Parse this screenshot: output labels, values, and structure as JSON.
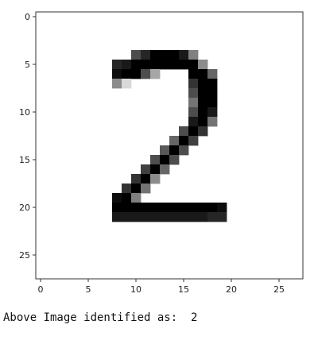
{
  "output": {
    "text": "Above Image identified as:  2"
  },
  "chart_data": {
    "type": "heatmap",
    "title": "",
    "xlabel": "",
    "ylabel": "",
    "colormap": "gray_r",
    "grid": false,
    "xlim": [
      -0.5,
      27.5
    ],
    "ylim": [
      27.5,
      -0.5
    ],
    "x_ticks": [
      0,
      5,
      10,
      15,
      20,
      25
    ],
    "y_ticks": [
      0,
      5,
      10,
      15,
      20,
      25
    ],
    "shape": [
      28,
      28
    ],
    "pixels": [
      {
        "r": 4,
        "c": 10,
        "v": 0.7
      },
      {
        "r": 4,
        "c": 11,
        "v": 0.85
      },
      {
        "r": 4,
        "c": 12,
        "v": 1
      },
      {
        "r": 4,
        "c": 13,
        "v": 1
      },
      {
        "r": 4,
        "c": 14,
        "v": 1
      },
      {
        "r": 4,
        "c": 15,
        "v": 0.9
      },
      {
        "r": 4,
        "c": 16,
        "v": 0.5
      },
      {
        "r": 5,
        "c": 8,
        "v": 0.85
      },
      {
        "r": 5,
        "c": 9,
        "v": 0.9
      },
      {
        "r": 5,
        "c": 10,
        "v": 1
      },
      {
        "r": 5,
        "c": 11,
        "v": 1
      },
      {
        "r": 5,
        "c": 12,
        "v": 1
      },
      {
        "r": 5,
        "c": 13,
        "v": 1
      },
      {
        "r": 5,
        "c": 14,
        "v": 1
      },
      {
        "r": 5,
        "c": 15,
        "v": 1
      },
      {
        "r": 5,
        "c": 16,
        "v": 1
      },
      {
        "r": 5,
        "c": 17,
        "v": 0.45
      },
      {
        "r": 6,
        "c": 8,
        "v": 0.95
      },
      {
        "r": 6,
        "c": 9,
        "v": 1
      },
      {
        "r": 6,
        "c": 10,
        "v": 1
      },
      {
        "r": 6,
        "c": 11,
        "v": 0.7
      },
      {
        "r": 6,
        "c": 12,
        "v": 0.35
      },
      {
        "r": 6,
        "c": 16,
        "v": 1
      },
      {
        "r": 6,
        "c": 17,
        "v": 1
      },
      {
        "r": 6,
        "c": 18,
        "v": 0.6
      },
      {
        "r": 7,
        "c": 8,
        "v": 0.45
      },
      {
        "r": 7,
        "c": 9,
        "v": 0.15
      },
      {
        "r": 7,
        "c": 16,
        "v": 0.8
      },
      {
        "r": 7,
        "c": 17,
        "v": 1
      },
      {
        "r": 7,
        "c": 18,
        "v": 1
      },
      {
        "r": 8,
        "c": 16,
        "v": 0.7
      },
      {
        "r": 8,
        "c": 17,
        "v": 1
      },
      {
        "r": 8,
        "c": 18,
        "v": 1
      },
      {
        "r": 9,
        "c": 16,
        "v": 0.55
      },
      {
        "r": 9,
        "c": 17,
        "v": 1
      },
      {
        "r": 9,
        "c": 18,
        "v": 1
      },
      {
        "r": 10,
        "c": 16,
        "v": 0.7
      },
      {
        "r": 10,
        "c": 17,
        "v": 1
      },
      {
        "r": 10,
        "c": 18,
        "v": 0.9
      },
      {
        "r": 11,
        "c": 16,
        "v": 0.9
      },
      {
        "r": 11,
        "c": 17,
        "v": 1
      },
      {
        "r": 11,
        "c": 18,
        "v": 0.55
      },
      {
        "r": 12,
        "c": 15,
        "v": 0.7
      },
      {
        "r": 12,
        "c": 16,
        "v": 1
      },
      {
        "r": 12,
        "c": 17,
        "v": 0.8
      },
      {
        "r": 13,
        "c": 14,
        "v": 0.6
      },
      {
        "r": 13,
        "c": 15,
        "v": 1
      },
      {
        "r": 13,
        "c": 16,
        "v": 0.75
      },
      {
        "r": 14,
        "c": 13,
        "v": 0.65
      },
      {
        "r": 14,
        "c": 14,
        "v": 1
      },
      {
        "r": 14,
        "c": 15,
        "v": 0.7
      },
      {
        "r": 15,
        "c": 12,
        "v": 0.7
      },
      {
        "r": 15,
        "c": 13,
        "v": 1
      },
      {
        "r": 15,
        "c": 14,
        "v": 0.7
      },
      {
        "r": 16,
        "c": 11,
        "v": 0.75
      },
      {
        "r": 16,
        "c": 12,
        "v": 1
      },
      {
        "r": 16,
        "c": 13,
        "v": 0.6
      },
      {
        "r": 17,
        "c": 10,
        "v": 0.8
      },
      {
        "r": 17,
        "c": 11,
        "v": 1
      },
      {
        "r": 17,
        "c": 12,
        "v": 0.45
      },
      {
        "r": 18,
        "c": 9,
        "v": 0.8
      },
      {
        "r": 18,
        "c": 10,
        "v": 1
      },
      {
        "r": 18,
        "c": 11,
        "v": 0.55
      },
      {
        "r": 19,
        "c": 8,
        "v": 0.95
      },
      {
        "r": 19,
        "c": 9,
        "v": 1
      },
      {
        "r": 19,
        "c": 10,
        "v": 0.5
      },
      {
        "r": 20,
        "c": 8,
        "v": 1
      },
      {
        "r": 20,
        "c": 9,
        "v": 1
      },
      {
        "r": 20,
        "c": 10,
        "v": 1
      },
      {
        "r": 20,
        "c": 11,
        "v": 1
      },
      {
        "r": 20,
        "c": 12,
        "v": 1
      },
      {
        "r": 20,
        "c": 13,
        "v": 1
      },
      {
        "r": 20,
        "c": 14,
        "v": 1
      },
      {
        "r": 20,
        "c": 15,
        "v": 1
      },
      {
        "r": 20,
        "c": 16,
        "v": 1
      },
      {
        "r": 20,
        "c": 17,
        "v": 1
      },
      {
        "r": 20,
        "c": 18,
        "v": 1
      },
      {
        "r": 20,
        "c": 19,
        "v": 0.95
      },
      {
        "r": 21,
        "c": 8,
        "v": 0.9
      },
      {
        "r": 21,
        "c": 9,
        "v": 0.9
      },
      {
        "r": 21,
        "c": 10,
        "v": 0.9
      },
      {
        "r": 21,
        "c": 11,
        "v": 0.9
      },
      {
        "r": 21,
        "c": 12,
        "v": 0.9
      },
      {
        "r": 21,
        "c": 13,
        "v": 0.9
      },
      {
        "r": 21,
        "c": 14,
        "v": 0.9
      },
      {
        "r": 21,
        "c": 15,
        "v": 0.9
      },
      {
        "r": 21,
        "c": 16,
        "v": 0.9
      },
      {
        "r": 21,
        "c": 17,
        "v": 0.9
      },
      {
        "r": 21,
        "c": 18,
        "v": 0.85
      },
      {
        "r": 21,
        "c": 19,
        "v": 0.85
      }
    ]
  }
}
